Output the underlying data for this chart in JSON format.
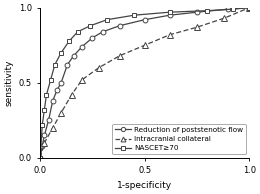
{
  "title": "",
  "xlabel": "1-specificity",
  "ylabel": "sensitivity",
  "xlim": [
    0,
    1
  ],
  "ylim": [
    0,
    1
  ],
  "xticks": [
    0,
    0.5,
    1
  ],
  "yticks": [
    0,
    0.5,
    1
  ],
  "roc_reduction": {
    "x": [
      0.0,
      0.01,
      0.02,
      0.04,
      0.06,
      0.08,
      0.1,
      0.13,
      0.16,
      0.2,
      0.25,
      0.3,
      0.38,
      0.5,
      0.62,
      0.75,
      0.9,
      1.0
    ],
    "y": [
      0.0,
      0.08,
      0.15,
      0.25,
      0.38,
      0.45,
      0.5,
      0.62,
      0.68,
      0.74,
      0.8,
      0.84,
      0.88,
      0.92,
      0.95,
      0.97,
      0.99,
      1.0
    ],
    "color": "#444444",
    "linestyle": "-",
    "marker": "o",
    "markersize": 3.5,
    "linewidth": 0.9,
    "label": "Reduction of poststenotic flow"
  },
  "roc_intracranial": {
    "x": [
      0.0,
      0.02,
      0.06,
      0.1,
      0.15,
      0.2,
      0.28,
      0.38,
      0.5,
      0.62,
      0.75,
      0.88,
      1.0
    ],
    "y": [
      0.0,
      0.1,
      0.2,
      0.3,
      0.42,
      0.52,
      0.6,
      0.68,
      0.75,
      0.82,
      0.87,
      0.93,
      1.0
    ],
    "color": "#444444",
    "linestyle": "--",
    "marker": "^",
    "markersize": 4,
    "linewidth": 0.9,
    "label": "Intracranial collateral"
  },
  "roc_nascet": {
    "x": [
      0.0,
      0.01,
      0.02,
      0.03,
      0.05,
      0.07,
      0.1,
      0.14,
      0.18,
      0.24,
      0.32,
      0.45,
      0.62,
      0.8,
      0.92,
      1.0
    ],
    "y": [
      0.0,
      0.22,
      0.32,
      0.42,
      0.52,
      0.62,
      0.7,
      0.78,
      0.84,
      0.88,
      0.92,
      0.95,
      0.97,
      0.98,
      0.99,
      1.0
    ],
    "color": "#444444",
    "linestyle": "-",
    "marker": "s",
    "markersize": 3.5,
    "linewidth": 0.9,
    "label": "NASCET≥70"
  },
  "legend_fontsize": 5.2,
  "axis_fontsize": 6.5,
  "tick_fontsize": 6.0,
  "fig_width": 2.6,
  "fig_height": 1.94,
  "dpi": 100
}
